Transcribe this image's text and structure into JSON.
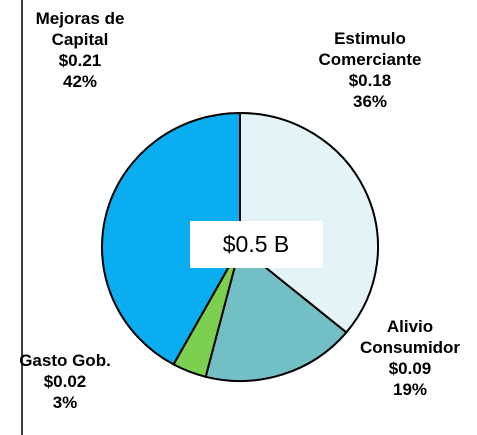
{
  "chart_data": {
    "type": "pie",
    "categories": [
      "Estimulo Comerciante",
      "Alivio Consumidor",
      "Gasto Gob.",
      "Mejoras de Capital"
    ],
    "values": [
      0.18,
      0.09,
      0.02,
      0.21
    ],
    "value_labels": [
      "$0.18",
      "$0.09",
      "$0.02",
      "$0.21"
    ],
    "percents": [
      36,
      19,
      3,
      42
    ],
    "percent_labels": [
      "36%",
      "19%",
      "3%",
      "42%"
    ],
    "colors": [
      "#e4f3f5",
      "#72bfc5",
      "#7ccf4f",
      "#0aaef0"
    ],
    "total_label": "$0.5 B"
  }
}
